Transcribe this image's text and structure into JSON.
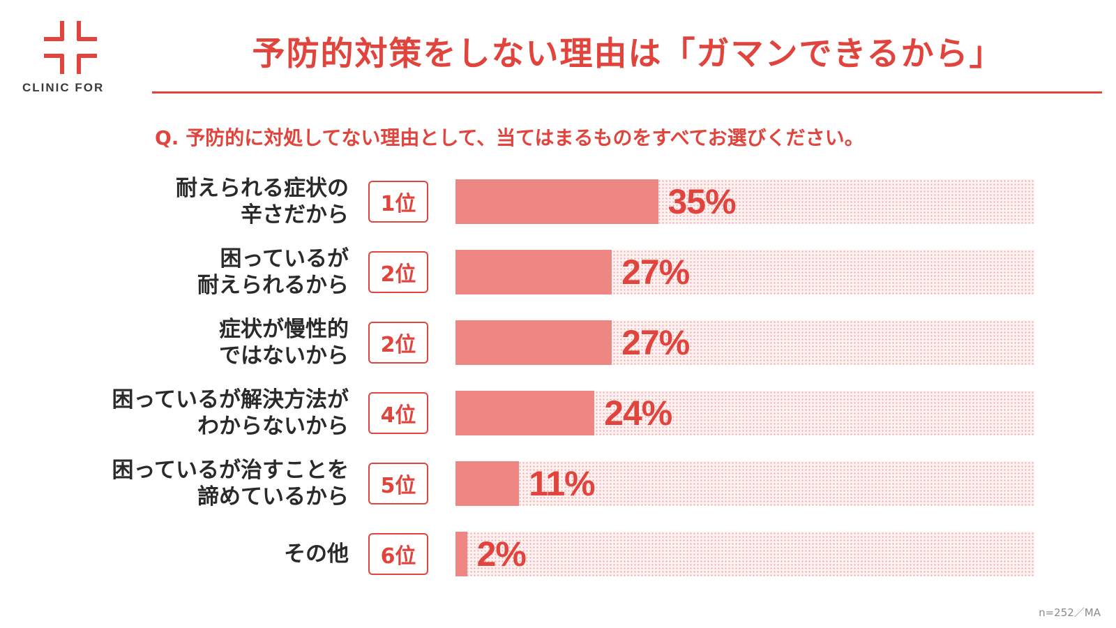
{
  "brand": {
    "logo_text": "CLINIC FOR",
    "color": "#e0443c"
  },
  "title": "予防的対策をしない理由は「ガマンできるから」",
  "question": "Q. 予防的に対処してない理由として、当てはまるものをすべてお選びください。",
  "note": "n=252／MA",
  "chart_data": {
    "type": "bar",
    "orientation": "horizontal",
    "value_max": 100,
    "unit": "%",
    "colors": {
      "bar": "#ee8683",
      "track": "#fdf1f1",
      "accent": "#e0443c"
    },
    "rows": [
      {
        "label_lines": [
          "耐えられる症状の",
          "辛さだから"
        ],
        "rank": "1位",
        "value": 35,
        "value_label": "35%"
      },
      {
        "label_lines": [
          "困っているが",
          "耐えられるから"
        ],
        "rank": "2位",
        "value": 27,
        "value_label": "27%"
      },
      {
        "label_lines": [
          "症状が慢性的",
          "ではないから"
        ],
        "rank": "2位",
        "value": 27,
        "value_label": "27%"
      },
      {
        "label_lines": [
          "困っているが解決方法が",
          "わからないから"
        ],
        "rank": "4位",
        "value": 24,
        "value_label": "24%"
      },
      {
        "label_lines": [
          "困っているが治すことを",
          "諦めているから"
        ],
        "rank": "5位",
        "value": 11,
        "value_label": "11%"
      },
      {
        "label_lines": [
          "その他"
        ],
        "rank": "6位",
        "value": 2,
        "value_label": "2%"
      }
    ]
  }
}
